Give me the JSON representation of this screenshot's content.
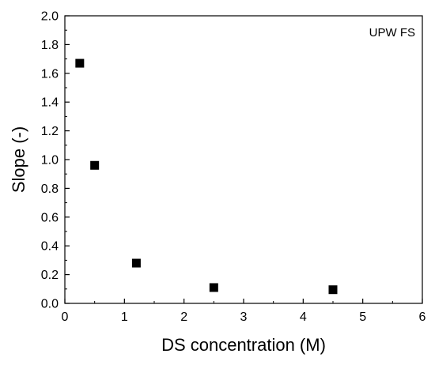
{
  "chart_data": {
    "type": "scatter",
    "title": "",
    "xlabel": "DS concentration (M)",
    "ylabel": "Slope (-)",
    "xlim": [
      0,
      6
    ],
    "ylim": [
      0,
      2.0
    ],
    "x_ticks": [
      "0",
      "1",
      "2",
      "3",
      "4",
      "5",
      "6"
    ],
    "y_ticks": [
      "0.0",
      "0.2",
      "0.4",
      "0.6",
      "0.8",
      "1.0",
      "1.2",
      "1.4",
      "1.6",
      "1.8",
      "2.0"
    ],
    "grid": false,
    "annotation": "UPW FS",
    "marker": "square",
    "marker_color": "#000000",
    "series": [
      {
        "points": [
          {
            "x": 0.25,
            "y": 1.67
          },
          {
            "x": 0.5,
            "y": 0.96
          },
          {
            "x": 1.2,
            "y": 0.28
          },
          {
            "x": 2.5,
            "y": 0.11
          },
          {
            "x": 4.5,
            "y": 0.095
          }
        ]
      }
    ]
  }
}
